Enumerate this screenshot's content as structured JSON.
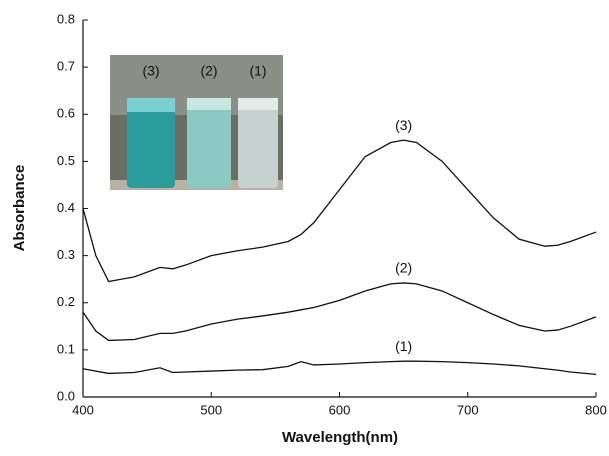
{
  "chart_data": {
    "type": "line",
    "xlabel": "Wavelength(nm)",
    "ylabel": "Absorbance",
    "x": [
      400,
      410,
      420,
      440,
      460,
      470,
      480,
      500,
      520,
      540,
      560,
      570,
      580,
      600,
      620,
      640,
      650,
      660,
      680,
      700,
      720,
      740,
      760,
      770,
      780,
      800
    ],
    "series": [
      {
        "name": "(3)",
        "color": "#111111",
        "values": [
          0.4,
          0.3,
          0.245,
          0.255,
          0.275,
          0.272,
          0.28,
          0.3,
          0.31,
          0.318,
          0.33,
          0.345,
          0.37,
          0.44,
          0.51,
          0.54,
          0.545,
          0.54,
          0.5,
          0.44,
          0.38,
          0.335,
          0.32,
          0.322,
          0.33,
          0.35
        ]
      },
      {
        "name": "(2)",
        "color": "#111111",
        "values": [
          0.18,
          0.14,
          0.12,
          0.122,
          0.135,
          0.135,
          0.14,
          0.155,
          0.165,
          0.172,
          0.18,
          0.185,
          0.19,
          0.205,
          0.225,
          0.24,
          0.242,
          0.24,
          0.225,
          0.2,
          0.175,
          0.152,
          0.14,
          0.142,
          0.15,
          0.17
        ]
      },
      {
        "name": "(1)",
        "color": "#111111",
        "values": [
          0.06,
          0.055,
          0.05,
          0.052,
          0.062,
          0.052,
          0.053,
          0.055,
          0.057,
          0.058,
          0.065,
          0.075,
          0.068,
          0.07,
          0.073,
          0.075,
          0.076,
          0.076,
          0.075,
          0.073,
          0.07,
          0.066,
          0.06,
          0.057,
          0.053,
          0.048
        ]
      }
    ],
    "xlim": [
      400,
      800
    ],
    "xticks": [
      400,
      500,
      600,
      700,
      800
    ],
    "ylim": [
      0,
      0.8
    ],
    "yticks": [
      {
        "value": 0,
        "label": "0.0"
      },
      0.1,
      0.2,
      0.3,
      0.4,
      0.5,
      0.6,
      0.7,
      0.8
    ],
    "inset_labels": [
      "(3)",
      "(2)",
      "(1)"
    ]
  }
}
